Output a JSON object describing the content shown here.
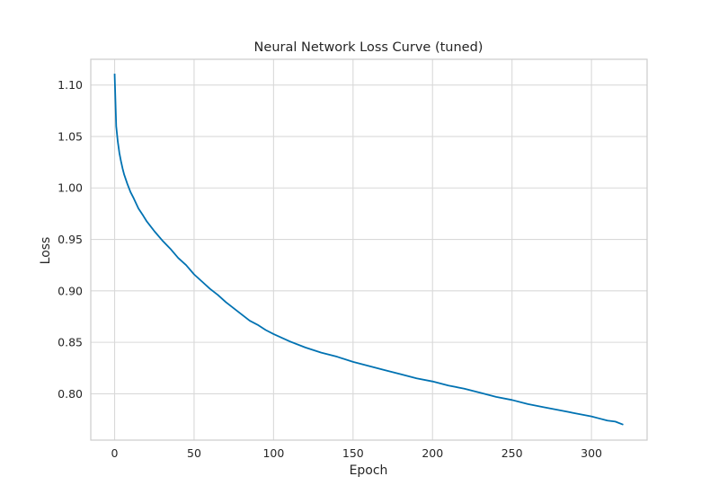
{
  "chart_data": {
    "type": "line",
    "title": "Neural Network Loss Curve (tuned)",
    "xlabel": "Epoch",
    "ylabel": "Loss",
    "xlim": [
      -15,
      335
    ],
    "ylim": [
      0.755,
      1.125
    ],
    "xticks": [
      0,
      50,
      100,
      150,
      200,
      250,
      300
    ],
    "yticks": [
      0.8,
      0.85,
      0.9,
      0.95,
      1.0,
      1.05,
      1.1
    ],
    "xtick_labels": [
      "0",
      "50",
      "100",
      "150",
      "200",
      "250",
      "300"
    ],
    "ytick_labels": [
      "0.80",
      "0.85",
      "0.90",
      "0.95",
      "1.00",
      "1.05",
      "1.10"
    ],
    "grid": true,
    "line_color": "#0072b2",
    "series": [
      {
        "name": "",
        "x": [
          0,
          1,
          2,
          3,
          4,
          5,
          6,
          8,
          10,
          12,
          15,
          18,
          20,
          25,
          30,
          35,
          40,
          45,
          50,
          55,
          60,
          65,
          70,
          75,
          80,
          85,
          90,
          95,
          100,
          110,
          120,
          130,
          140,
          150,
          160,
          170,
          180,
          190,
          200,
          210,
          220,
          230,
          240,
          250,
          260,
          270,
          280,
          290,
          300,
          305,
          310,
          315,
          320
        ],
        "y": [
          1.111,
          1.06,
          1.045,
          1.034,
          1.026,
          1.019,
          1.013,
          1.004,
          0.996,
          0.99,
          0.98,
          0.973,
          0.968,
          0.958,
          0.949,
          0.941,
          0.932,
          0.925,
          0.916,
          0.909,
          0.902,
          0.896,
          0.889,
          0.883,
          0.877,
          0.871,
          0.867,
          0.862,
          0.858,
          0.851,
          0.845,
          0.84,
          0.836,
          0.831,
          0.827,
          0.823,
          0.819,
          0.815,
          0.812,
          0.808,
          0.805,
          0.801,
          0.797,
          0.794,
          0.79,
          0.787,
          0.784,
          0.781,
          0.778,
          0.776,
          0.774,
          0.773,
          0.77
        ]
      }
    ]
  }
}
